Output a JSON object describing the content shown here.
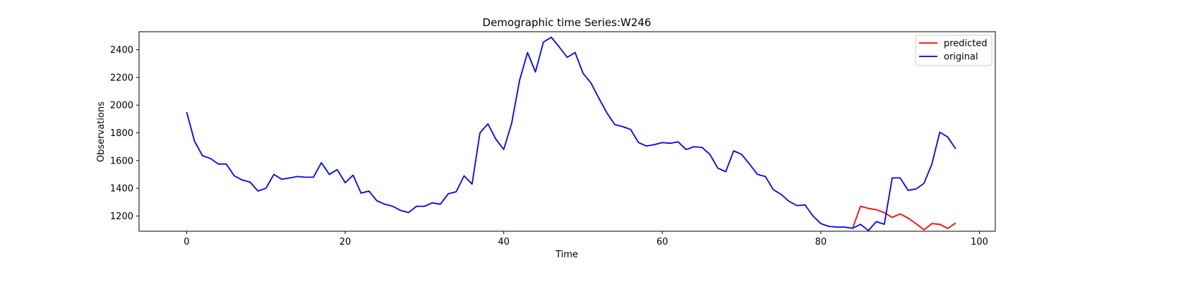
{
  "chart_data": {
    "type": "line",
    "title": "Demographic time Series:W246",
    "xlabel": "Time",
    "ylabel": "Observations",
    "xlim": [
      -6,
      102
    ],
    "ylim": [
      1090,
      2530
    ],
    "xticks": [
      0,
      20,
      40,
      60,
      80,
      100
    ],
    "yticks": [
      1200,
      1400,
      1600,
      1800,
      2000,
      2200,
      2400
    ],
    "grid": false,
    "legend_position": "top-right",
    "series": [
      {
        "name": "predicted",
        "color": "#ff0000",
        "x": [
          84,
          85,
          86,
          87,
          88,
          89,
          90,
          91,
          92,
          93,
          94,
          95,
          96,
          97
        ],
        "values": [
          1111,
          1270,
          1255,
          1245,
          1225,
          1190,
          1215,
          1185,
          1145,
          1100,
          1145,
          1140,
          1110,
          1150
        ]
      },
      {
        "name": "original",
        "color": "#0000ff",
        "x": [
          0,
          1,
          2,
          3,
          4,
          5,
          6,
          7,
          8,
          9,
          10,
          11,
          12,
          13,
          14,
          15,
          16,
          17,
          18,
          19,
          20,
          21,
          22,
          23,
          24,
          25,
          26,
          27,
          28,
          29,
          30,
          31,
          32,
          33,
          34,
          35,
          36,
          37,
          38,
          39,
          40,
          41,
          42,
          43,
          44,
          45,
          46,
          47,
          48,
          49,
          50,
          51,
          52,
          53,
          54,
          55,
          56,
          57,
          58,
          59,
          60,
          61,
          62,
          63,
          64,
          65,
          66,
          67,
          68,
          69,
          70,
          71,
          72,
          73,
          74,
          75,
          76,
          77,
          78,
          79,
          80,
          81,
          82,
          83,
          84,
          85,
          86,
          87,
          88,
          89,
          90,
          91,
          92,
          93,
          94,
          95,
          96,
          97
        ],
        "values": [
          1950,
          1740,
          1635,
          1615,
          1575,
          1575,
          1490,
          1460,
          1445,
          1380,
          1400,
          1500,
          1465,
          1475,
          1485,
          1480,
          1480,
          1585,
          1500,
          1535,
          1440,
          1495,
          1365,
          1380,
          1310,
          1285,
          1270,
          1240,
          1225,
          1270,
          1270,
          1295,
          1285,
          1360,
          1375,
          1490,
          1430,
          1800,
          1865,
          1755,
          1680,
          1870,
          2180,
          2380,
          2240,
          2455,
          2490,
          2420,
          2345,
          2380,
          2230,
          2160,
          2050,
          1945,
          1860,
          1845,
          1825,
          1730,
          1705,
          1715,
          1730,
          1725,
          1735,
          1680,
          1700,
          1695,
          1645,
          1545,
          1520,
          1670,
          1645,
          1575,
          1500,
          1485,
          1390,
          1355,
          1305,
          1275,
          1280,
          1200,
          1145,
          1125,
          1120,
          1120,
          1111,
          1140,
          1095,
          1160,
          1140,
          1475,
          1475,
          1385,
          1395,
          1435,
          1575,
          1805,
          1770,
          1685
        ]
      }
    ]
  }
}
